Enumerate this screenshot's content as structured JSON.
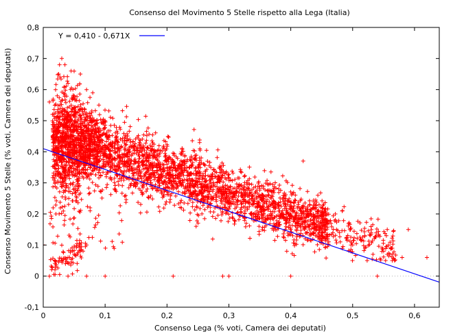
{
  "chart_data": {
    "type": "scatter",
    "title": "Consenso del Movimento 5 Stelle rispetto alla Lega (Italia)",
    "xlabel": "Consenso Lega (% voti, Camera dei deputati)",
    "ylabel": "Consenso Movimento 5 Stelle (% voti, Camera dei deputati)",
    "xlim": [
      0,
      0.64
    ],
    "ylim": [
      -0.1,
      0.8
    ],
    "xticks": [
      "0",
      "0,1",
      "0,2",
      "0,3",
      "0,4",
      "0,5",
      "0,6"
    ],
    "yticks": [
      "-0,1",
      "0",
      "0,1",
      "0,2",
      "0,3",
      "0,4",
      "0,5",
      "0,6",
      "0,7",
      "0,8"
    ],
    "grid": false,
    "legend_position": "top-left",
    "series": [
      {
        "type": "scatter",
        "marker": "+",
        "color": "#ff0000",
        "approx_points": 8000,
        "points": [
          [
            0.01,
            0.56
          ],
          [
            0.015,
            0.52
          ],
          [
            0.02,
            0.6
          ],
          [
            0.025,
            0.65
          ],
          [
            0.03,
            0.7
          ],
          [
            0.035,
            0.68
          ],
          [
            0.04,
            0.62
          ],
          [
            0.045,
            0.66
          ],
          [
            0.05,
            0.58
          ],
          [
            0.06,
            0.65
          ],
          [
            0.07,
            0.6
          ],
          [
            0.08,
            0.59
          ],
          [
            0.09,
            0.55
          ],
          [
            0.1,
            0.5
          ],
          [
            0.12,
            0.46
          ],
          [
            0.14,
            0.44
          ],
          [
            0.16,
            0.41
          ],
          [
            0.18,
            0.39
          ],
          [
            0.2,
            0.36
          ],
          [
            0.22,
            0.33
          ],
          [
            0.24,
            0.31
          ],
          [
            0.26,
            0.29
          ],
          [
            0.28,
            0.26
          ],
          [
            0.3,
            0.24
          ],
          [
            0.32,
            0.22
          ],
          [
            0.34,
            0.2
          ],
          [
            0.36,
            0.18
          ],
          [
            0.38,
            0.16
          ],
          [
            0.4,
            0.15
          ],
          [
            0.42,
            0.37
          ],
          [
            0.44,
            0.13
          ],
          [
            0.46,
            0.12
          ],
          [
            0.48,
            0.11
          ],
          [
            0.5,
            0.1
          ],
          [
            0.52,
            0.09
          ],
          [
            0.53,
            0.14
          ],
          [
            0.55,
            0.08
          ],
          [
            0.56,
            0.07
          ],
          [
            0.58,
            0.06
          ],
          [
            0.59,
            0.15
          ],
          [
            0.62,
            0.06
          ],
          [
            0.02,
            0.03
          ],
          [
            0.03,
            0.05
          ],
          [
            0.04,
            0.06
          ],
          [
            0.05,
            0.07
          ],
          [
            0.06,
            0.08
          ],
          [
            0.07,
            0.1
          ],
          [
            0.0,
            0.1
          ],
          [
            0.01,
            0.0
          ],
          [
            0.04,
            0.0
          ],
          [
            0.07,
            0.0
          ],
          [
            0.1,
            0.0
          ],
          [
            0.21,
            0.0
          ],
          [
            0.29,
            0.0
          ],
          [
            0.3,
            0.0
          ],
          [
            0.4,
            0.0
          ],
          [
            0.54,
            0.0
          ]
        ]
      }
    ],
    "regression": {
      "label": "Y = 0,410 - 0,671X",
      "intercept": 0.41,
      "slope": -0.671,
      "color": "#0000ff"
    },
    "zero_line": {
      "y": 0,
      "style": "dotted",
      "color": "#b0b0b0"
    }
  }
}
